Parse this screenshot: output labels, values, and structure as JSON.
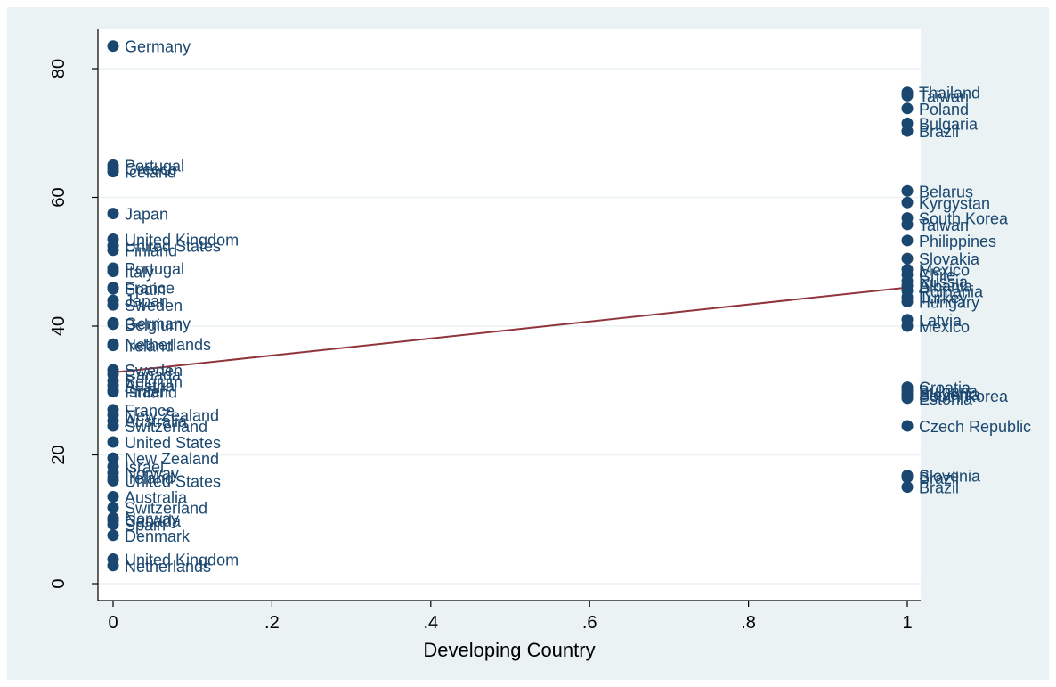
{
  "chart_data": {
    "type": "scatter",
    "xlabel": "Developing Country",
    "ylabel": "",
    "xlim": [
      0,
      1
    ],
    "ylim": [
      0,
      85
    ],
    "x_ticks": [
      {
        "value": 0,
        "label": "0"
      },
      {
        "value": 0.2,
        "label": ".2"
      },
      {
        "value": 0.4,
        "label": ".4"
      },
      {
        "value": 0.6,
        "label": ".6"
      },
      {
        "value": 0.8,
        "label": ".8"
      },
      {
        "value": 1,
        "label": "1"
      }
    ],
    "y_ticks": [
      {
        "value": 0,
        "label": "0"
      },
      {
        "value": 20,
        "label": "20"
      },
      {
        "value": 40,
        "label": "40"
      },
      {
        "value": 60,
        "label": "60"
      },
      {
        "value": 80,
        "label": "80"
      }
    ],
    "grid": "horizontal",
    "legend": "none",
    "colors": {
      "marker": "#1a476f",
      "label": "#1a476f",
      "fit_line": "#90353b",
      "outer_background": "#eaf2f3",
      "plot_background": "#ffffff",
      "grid": "#eaf2f3"
    },
    "points": [
      {
        "x": 0,
        "y": 83.5,
        "label": "Germany"
      },
      {
        "x": 0,
        "y": 65.0,
        "label": "Portugal"
      },
      {
        "x": 0,
        "y": 64.5,
        "label": "Greece"
      },
      {
        "x": 0,
        "y": 64.0,
        "label": "Iceland"
      },
      {
        "x": 0,
        "y": 57.5,
        "label": "Japan"
      },
      {
        "x": 0,
        "y": 53.5,
        "label": "United Kingdom"
      },
      {
        "x": 0,
        "y": 52.5,
        "label": "United States"
      },
      {
        "x": 0,
        "y": 51.8,
        "label": "Finland"
      },
      {
        "x": 0,
        "y": 49.0,
        "label": "Portugal"
      },
      {
        "x": 0,
        "y": 48.5,
        "label": "Italy"
      },
      {
        "x": 0,
        "y": 46.0,
        "label": "France"
      },
      {
        "x": 0,
        "y": 45.8,
        "label": "Spain"
      },
      {
        "x": 0,
        "y": 44.0,
        "label": "Japan"
      },
      {
        "x": 0,
        "y": 43.3,
        "label": "Sweden"
      },
      {
        "x": 0,
        "y": 40.5,
        "label": "Germany"
      },
      {
        "x": 0,
        "y": 40.3,
        "label": "Belgium"
      },
      {
        "x": 0,
        "y": 37.2,
        "label": "Netherlands"
      },
      {
        "x": 0,
        "y": 37.0,
        "label": "Ireland"
      },
      {
        "x": 0,
        "y": 33.2,
        "label": "Sweden"
      },
      {
        "x": 0,
        "y": 32.5,
        "label": "Canada"
      },
      {
        "x": 0,
        "y": 31.5,
        "label": "Belgium"
      },
      {
        "x": 0,
        "y": 30.8,
        "label": "Austria"
      },
      {
        "x": 0,
        "y": 30.0,
        "label": "Israel"
      },
      {
        "x": 0,
        "y": 29.8,
        "label": "Finland"
      },
      {
        "x": 0,
        "y": 27.0,
        "label": "France"
      },
      {
        "x": 0,
        "y": 26.2,
        "label": "New Zealand"
      },
      {
        "x": 0,
        "y": 25.3,
        "label": "Australia"
      },
      {
        "x": 0,
        "y": 24.5,
        "label": "Switzerland"
      },
      {
        "x": 0,
        "y": 22.0,
        "label": "United States"
      },
      {
        "x": 0,
        "y": 19.5,
        "label": "New Zealand"
      },
      {
        "x": 0,
        "y": 18.2,
        "label": "Israel"
      },
      {
        "x": 0,
        "y": 17.2,
        "label": "Norway"
      },
      {
        "x": 0,
        "y": 16.5,
        "label": "Ireland"
      },
      {
        "x": 0,
        "y": 16.0,
        "label": "United States"
      },
      {
        "x": 0,
        "y": 13.5,
        "label": "Australia"
      },
      {
        "x": 0,
        "y": 11.8,
        "label": "Switzerland"
      },
      {
        "x": 0,
        "y": 10.2,
        "label": "Norway"
      },
      {
        "x": 0,
        "y": 9.8,
        "label": "Canada"
      },
      {
        "x": 0,
        "y": 9.2,
        "label": "Spain"
      },
      {
        "x": 0,
        "y": 7.5,
        "label": "Denmark"
      },
      {
        "x": 0,
        "y": 3.8,
        "label": "United Kingdom"
      },
      {
        "x": 0,
        "y": 2.8,
        "label": "Netherlands"
      },
      {
        "x": 1,
        "y": 76.3,
        "label": "Thailand"
      },
      {
        "x": 1,
        "y": 75.8,
        "label": "Taiwan"
      },
      {
        "x": 1,
        "y": 73.8,
        "label": "Poland"
      },
      {
        "x": 1,
        "y": 71.5,
        "label": "Bulgaria"
      },
      {
        "x": 1,
        "y": 70.3,
        "label": "Brazil"
      },
      {
        "x": 1,
        "y": 61.0,
        "label": "Belarus"
      },
      {
        "x": 1,
        "y": 59.2,
        "label": "Kyrgystan"
      },
      {
        "x": 1,
        "y": 56.8,
        "label": "South Korea"
      },
      {
        "x": 1,
        "y": 55.8,
        "label": "Taiwan"
      },
      {
        "x": 1,
        "y": 53.3,
        "label": "Philippines"
      },
      {
        "x": 1,
        "y": 50.5,
        "label": "Slovakia"
      },
      {
        "x": 1,
        "y": 48.8,
        "label": "Mexico"
      },
      {
        "x": 1,
        "y": 48.0,
        "label": "Chile"
      },
      {
        "x": 1,
        "y": 47.0,
        "label": "Russia"
      },
      {
        "x": 1,
        "y": 46.3,
        "label": "Albania"
      },
      {
        "x": 1,
        "y": 45.5,
        "label": "Romania"
      },
      {
        "x": 1,
        "y": 44.5,
        "label": "Turkey"
      },
      {
        "x": 1,
        "y": 43.8,
        "label": "Hungary"
      },
      {
        "x": 1,
        "y": 41.0,
        "label": "Latvia"
      },
      {
        "x": 1,
        "y": 40.0,
        "label": "Mexico"
      },
      {
        "x": 1,
        "y": 30.5,
        "label": "Croatia"
      },
      {
        "x": 1,
        "y": 30.0,
        "label": "Bulgaria"
      },
      {
        "x": 1,
        "y": 29.5,
        "label": "Slovenia"
      },
      {
        "x": 1,
        "y": 29.2,
        "label": "South Korea"
      },
      {
        "x": 1,
        "y": 28.8,
        "label": "Estonia"
      },
      {
        "x": 1,
        "y": 24.5,
        "label": "Czech Republic"
      },
      {
        "x": 1,
        "y": 16.8,
        "label": "Slovenia"
      },
      {
        "x": 1,
        "y": 16.5,
        "label": "Brazil"
      },
      {
        "x": 1,
        "y": 15.0,
        "label": "Brazil"
      }
    ],
    "fit_line": {
      "x": [
        0,
        1
      ],
      "y": [
        32.8,
        46.0
      ]
    }
  }
}
